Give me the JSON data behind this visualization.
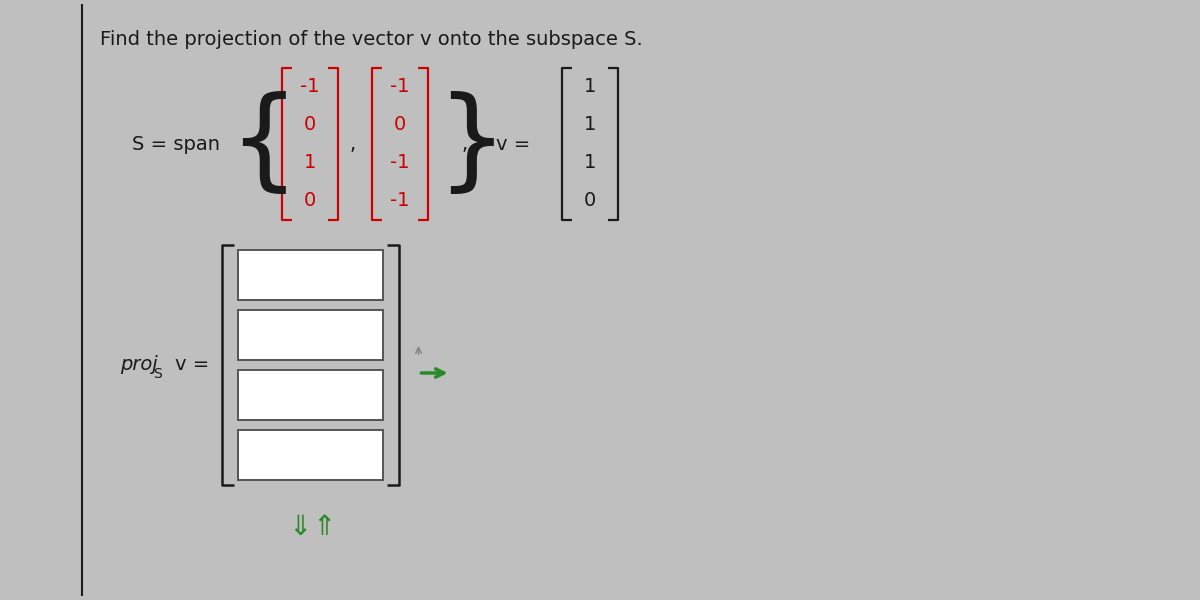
{
  "title": "Find the projection of the vector v onto the subspace S.",
  "bg_color": "#c0bfbf",
  "text_color": "#1a1a1a",
  "red_color": "#cc0000",
  "green_color": "#2a8a2a",
  "vec1": [
    "-1",
    "0",
    "1",
    "0"
  ],
  "vec2": [
    "-1",
    "0",
    "-1",
    "-1"
  ],
  "vecv": [
    "1",
    "1",
    "1",
    "0"
  ],
  "n_input_rows": 4,
  "title_fontsize": 14,
  "math_fontsize": 14,
  "label_fontsize": 14
}
